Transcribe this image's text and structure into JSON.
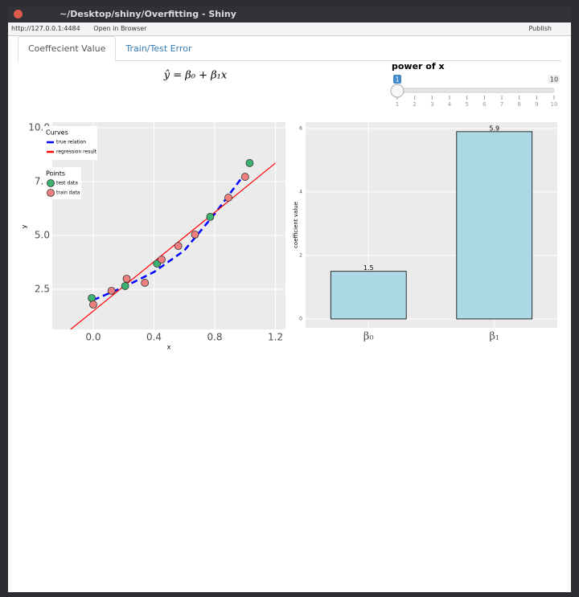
{
  "window": {
    "title": "~/Desktop/shiny/Overfitting - Shiny"
  },
  "toolbar": {
    "url": "http://127.0.0.1:4484",
    "open_in_browser": "Open in Browser",
    "publish": "Publish"
  },
  "tabs": [
    "Coeffecient Value",
    "Train/Test Error"
  ],
  "formula": "ŷ = β₀ + β₁x",
  "slider": {
    "label": "power of x",
    "min": 1,
    "max": 10,
    "value": 1,
    "ticks": [
      1,
      2,
      3,
      4,
      5,
      6,
      7,
      8,
      9,
      10
    ]
  },
  "chart_data": [
    {
      "type": "scatter",
      "x_label": "x",
      "y_label": "y",
      "xlim": [
        -0.27,
        1.266
      ],
      "ylim": [
        0.634,
        10.26
      ],
      "xticks": [
        {
          "value": 0,
          "label": "0.0"
        },
        0.4,
        0.8,
        1.2
      ],
      "yticks": [
        2.5,
        {
          "value": 5,
          "label": "5.0"
        },
        7.5,
        {
          "value": 10,
          "label": "10.0"
        }
      ],
      "grid": true,
      "curves": {
        "title": "Curves",
        "series": [
          {
            "name": "true relation",
            "color": "#0000ff",
            "dashed": true,
            "x": [
              0,
              0.2,
              0.4,
              0.6,
              0.8,
              0.97
            ],
            "values": [
              2.0,
              2.6,
              3.3,
              4.3,
              6.0,
              7.6
            ]
          },
          {
            "name": "regression result",
            "color": "#ff0000",
            "dashed": false,
            "x": [
              -0.15,
              1.2
            ],
            "values": [
              0.63,
              8.36
            ]
          }
        ]
      },
      "points": {
        "title": "Points",
        "series": [
          {
            "name": "test data",
            "color": "#3cb371",
            "x": [
              -0.01,
              0.21,
              0.42,
              0.77,
              1.03
            ],
            "values": [
              2.09,
              2.65,
              3.69,
              5.86,
              8.36
            ]
          },
          {
            "name": "train data",
            "color": "#f08080",
            "x": [
              0.0,
              0.12,
              0.22,
              0.34,
              0.45,
              0.56,
              0.67,
              0.89,
              1.0
            ],
            "values": [
              1.79,
              2.43,
              2.99,
              2.8,
              3.88,
              4.51,
              5.04,
              6.75,
              7.72
            ]
          }
        ]
      }
    },
    {
      "type": "bar",
      "y_label": "coefficient value",
      "categories": [
        "β₀",
        "β₁"
      ],
      "values": [
        1.5,
        5.9
      ],
      "color": "#add8e6",
      "ylim": [
        -0.28,
        6.2
      ],
      "yticks": [
        0,
        2,
        4,
        6
      ],
      "grid": true
    }
  ]
}
